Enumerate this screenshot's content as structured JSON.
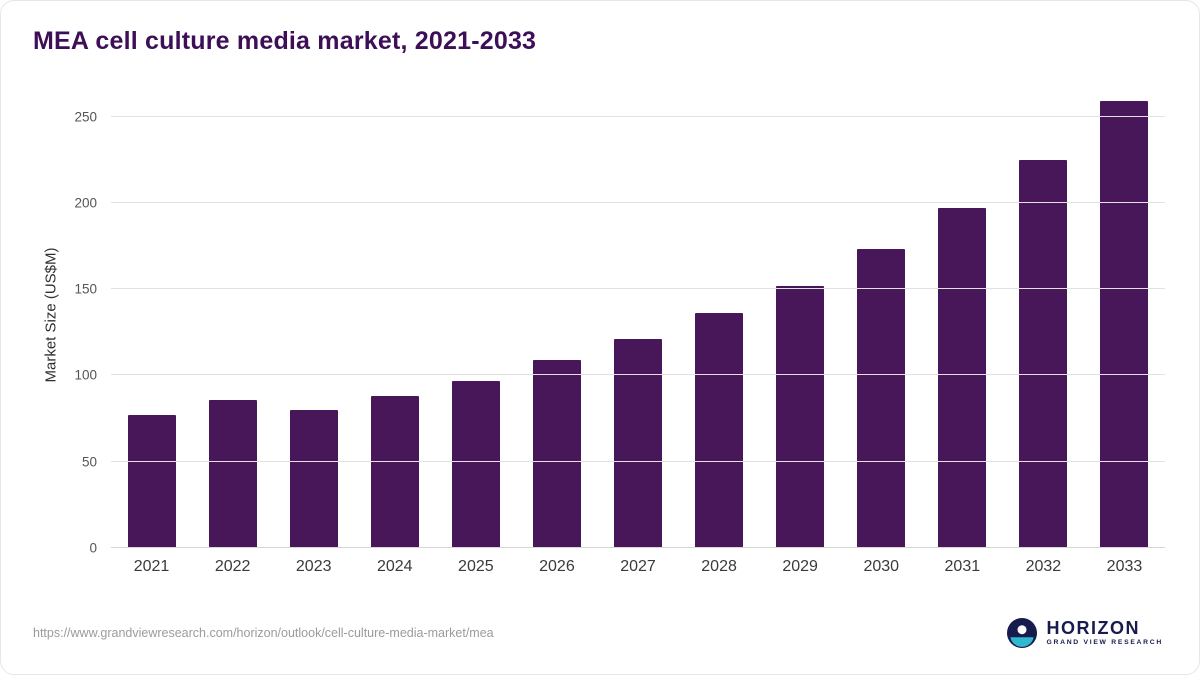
{
  "chart_data": {
    "type": "bar",
    "title": "MEA cell culture media market, 2021-2033",
    "categories": [
      "2021",
      "2022",
      "2023",
      "2024",
      "2025",
      "2026",
      "2027",
      "2028",
      "2029",
      "2030",
      "2031",
      "2032",
      "2033"
    ],
    "values": [
      77,
      86,
      80,
      88,
      97,
      109,
      121,
      136,
      152,
      173,
      197,
      225,
      259
    ],
    "xlabel": "",
    "ylabel": "Market Size (US$M)",
    "ylim": [
      0,
      270
    ],
    "yticks": [
      0,
      50,
      100,
      150,
      200,
      250
    ],
    "grid": true,
    "legend": false,
    "bar_color": "#471759"
  },
  "footer": {
    "source_url": "https://www.grandviewresearch.com/horizon/outlook/cell-culture-media-market/mea",
    "logo": {
      "name": "HORIZON",
      "subtitle": "GRAND VIEW RESEARCH"
    }
  },
  "colors": {
    "title": "#3d0f56",
    "gridline": "#e2e2e2",
    "axis_text": "#555555",
    "source_text": "#9b9b9b",
    "logo_navy": "#171b4d",
    "logo_teal": "#2eb9ce"
  }
}
